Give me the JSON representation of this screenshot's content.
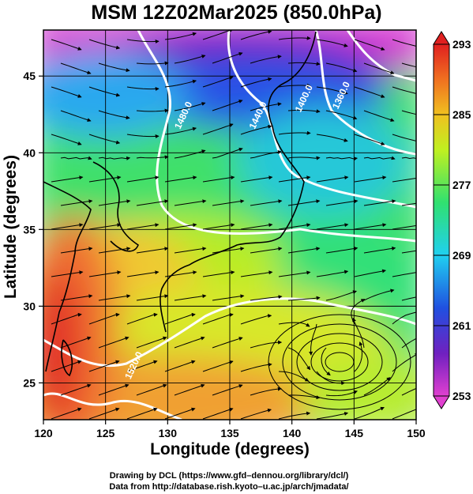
{
  "title": "MSM 12Z02Mar2025 (850.0hPa)",
  "xlabel": "Longitude (degrees)",
  "ylabel": "Latitude  (degrees)",
  "credits": [
    "Drawing by DCL (https://www.gfd–dennou.org/library/dcl/)",
    "Data from http://database.rish.kyoto–u.ac.jp/arch/jmadata/"
  ],
  "map": {
    "lon_range": [
      120,
      150
    ],
    "lat_range": [
      22.6,
      48
    ],
    "lon_ticks": [
      120,
      125,
      130,
      135,
      140,
      145,
      150
    ],
    "lat_ticks": [
      25,
      30,
      35,
      40,
      45
    ],
    "grid": true,
    "projection": "equirectangular"
  },
  "colorbar": {
    "variable": "temperature",
    "range": [
      253,
      293
    ],
    "tick_labels": [
      "293",
      "285",
      "277",
      "269",
      "261",
      "253"
    ],
    "tick_values": [
      293,
      285,
      277,
      269,
      261,
      253
    ],
    "colors": [
      "#e040d0",
      "#7020c0",
      "#2050e0",
      "#20d0f0",
      "#30e070",
      "#c0f020",
      "#f0c020",
      "#f07020",
      "#e02020"
    ]
  },
  "contours": [
    {
      "label": "1480.0",
      "lon": 131.0,
      "lat": 41.5
    },
    {
      "label": "1440.0",
      "lon": 137.0,
      "lat": 41.5
    },
    {
      "label": "1400.0",
      "lon": 140.7,
      "lat": 42.6
    },
    {
      "label": "1360.0",
      "lon": 143.7,
      "lat": 42.8
    },
    {
      "label": "1520.0",
      "lon": 127.0,
      "lat": 25.2
    }
  ]
}
